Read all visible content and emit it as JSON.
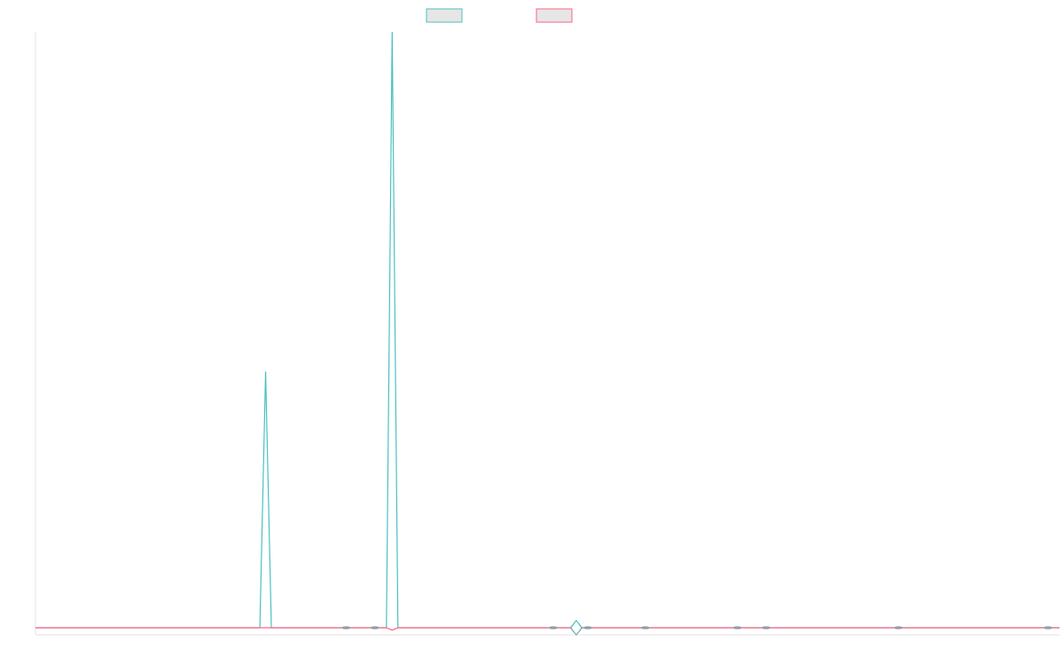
{
  "chart_data": {
    "type": "line",
    "title": "",
    "xlabel": "",
    "ylabel": "",
    "x": [
      0,
      1,
      2,
      3,
      4,
      5,
      6,
      7,
      8,
      9,
      10,
      11,
      12,
      13,
      14,
      15,
      16,
      17,
      18,
      19,
      20,
      21,
      22,
      23,
      24,
      25,
      26,
      27,
      28,
      29,
      30,
      31,
      32,
      33,
      34,
      35,
      36,
      37,
      38,
      39,
      40,
      41,
      42,
      43,
      44,
      45,
      46,
      47,
      48,
      49,
      50,
      51,
      52,
      53,
      54,
      55,
      56,
      57,
      58,
      59,
      60,
      61,
      62,
      63,
      64,
      65,
      66,
      67,
      68,
      69,
      70,
      71,
      72,
      73,
      74,
      75,
      76,
      77,
      78,
      79,
      80,
      81,
      82,
      83,
      84,
      85,
      86,
      87,
      88,
      89,
      90,
      91,
      92,
      93,
      94,
      95,
      96,
      97,
      98,
      99,
      100,
      101,
      102,
      103,
      104,
      105,
      106,
      107,
      108,
      109,
      110,
      111,
      112,
      113,
      114,
      115,
      116,
      117,
      118,
      119,
      120,
      121,
      122,
      123,
      124,
      125,
      126,
      127,
      128,
      129,
      130,
      131,
      132,
      133,
      134,
      135,
      136,
      137,
      138,
      139,
      140,
      141,
      142,
      143,
      144,
      145,
      146,
      147,
      148,
      149,
      150,
      151,
      152,
      153,
      154,
      155,
      156,
      157,
      158,
      159,
      160,
      161,
      162,
      163,
      164,
      165,
      166,
      167,
      168,
      169,
      170,
      171,
      172,
      173,
      174,
      175,
      176,
      177,
      178
    ],
    "xlim": [
      0,
      178
    ],
    "ylim": [
      -1.2,
      100
    ],
    "legend_position": "top",
    "series": [
      {
        "color": "#4bc0c0",
        "values": [
          0,
          0,
          0,
          0,
          0,
          0,
          0,
          0,
          0,
          0,
          0,
          0,
          0,
          0,
          0,
          0,
          0,
          0,
          0,
          0,
          0,
          0,
          0,
          0,
          0,
          0,
          0,
          0,
          0,
          0,
          0,
          0,
          0,
          0,
          0,
          0,
          0,
          0,
          0,
          0,
          43,
          0,
          0,
          0,
          0,
          0,
          0,
          0,
          0,
          0,
          0,
          0,
          0,
          0,
          0,
          0,
          0,
          0,
          0,
          0,
          0,
          0,
          100,
          0,
          0,
          0,
          0,
          0,
          0,
          0,
          0,
          0,
          0,
          0,
          0,
          0,
          0,
          0,
          0,
          0,
          0,
          0,
          0,
          0,
          0,
          0,
          0,
          0,
          0,
          0,
          0,
          0,
          0,
          0,
          1.2,
          0,
          0,
          0,
          0,
          0,
          0,
          0,
          0,
          0,
          0,
          0,
          0,
          0,
          0,
          0,
          0,
          0,
          0,
          0,
          0,
          0,
          0,
          0,
          0,
          0,
          0,
          0,
          0,
          0,
          0,
          0,
          0,
          0,
          0,
          0,
          0,
          0,
          0,
          0,
          0,
          0,
          0,
          0,
          0,
          0,
          0,
          0,
          0,
          0,
          0,
          0,
          0,
          0,
          0,
          0,
          0,
          0,
          0,
          0,
          0,
          0,
          0,
          0,
          0,
          0,
          0,
          0,
          0,
          0,
          0,
          0,
          0,
          0,
          0,
          0,
          0,
          0,
          0,
          0,
          0,
          0,
          0,
          0,
          0
        ]
      },
      {
        "color": "#ff6384",
        "values": [
          0,
          0,
          0,
          0,
          0,
          0,
          0,
          0,
          0,
          0,
          0,
          0,
          0,
          0,
          0,
          0,
          0,
          0,
          0,
          0,
          0,
          0,
          0,
          0,
          0,
          0,
          0,
          0,
          0,
          0,
          0,
          0,
          0,
          0,
          0,
          0,
          0,
          0,
          0,
          0,
          0,
          0,
          0,
          0,
          0,
          0,
          0,
          0,
          0,
          0,
          0,
          0,
          0,
          0,
          0,
          0,
          0,
          0,
          0,
          0,
          0,
          0,
          -0.4,
          0,
          0,
          0,
          0,
          0,
          0,
          0,
          0,
          0,
          0,
          0,
          0,
          0,
          0,
          0,
          0,
          0,
          0,
          0,
          0,
          0,
          0,
          0,
          0,
          0,
          0,
          0,
          0,
          0,
          0,
          0,
          -1.2,
          0,
          0,
          0,
          0,
          0,
          0,
          0,
          0,
          0,
          0,
          0,
          0,
          0,
          0,
          0,
          0,
          0,
          0,
          0,
          0,
          0,
          0,
          0,
          0,
          0,
          0,
          0,
          0,
          0,
          0,
          0,
          0,
          0,
          0,
          0,
          0,
          0,
          0,
          0,
          0,
          0,
          0,
          0,
          0,
          0,
          0,
          0,
          0,
          0,
          0,
          0,
          0,
          0,
          0,
          0,
          0,
          0,
          0,
          0,
          0,
          0,
          0,
          0,
          0,
          0,
          0,
          0,
          0,
          0,
          0,
          0,
          0,
          0,
          0,
          0,
          0,
          0,
          0,
          0,
          0,
          0,
          0,
          0,
          0
        ]
      }
    ]
  }
}
